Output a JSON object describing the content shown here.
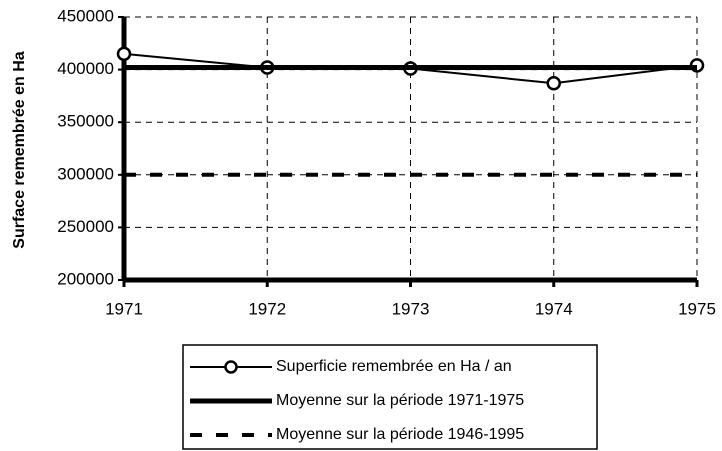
{
  "chart_data": {
    "type": "line",
    "y_label": "Surface remembrée en Ha",
    "categories": [
      "1971",
      "1972",
      "1973",
      "1974",
      "1975"
    ],
    "series": [
      {
        "name": "Superficie remembrée en Ha / an",
        "color": "#000000",
        "style": "solid",
        "width": 2,
        "marker": "circle",
        "values": [
          415000,
          402000,
          401000,
          387000,
          404000
        ]
      },
      {
        "name": "Moyenne sur la période 1971-1975",
        "color": "#000000",
        "style": "solid",
        "width": 5,
        "marker": "none",
        "values": [
          402000,
          402000,
          402000,
          402000,
          402000
        ]
      },
      {
        "name": "Moyenne sur la période 1946-1995",
        "color": "#000000",
        "style": "dashed",
        "width": 4,
        "marker": "none",
        "values": [
          300000,
          300000,
          300000,
          300000,
          300000
        ]
      }
    ],
    "ylim": [
      200000,
      450000
    ],
    "yticks": [
      200000,
      250000,
      300000,
      350000,
      400000,
      450000
    ],
    "grid": true
  }
}
